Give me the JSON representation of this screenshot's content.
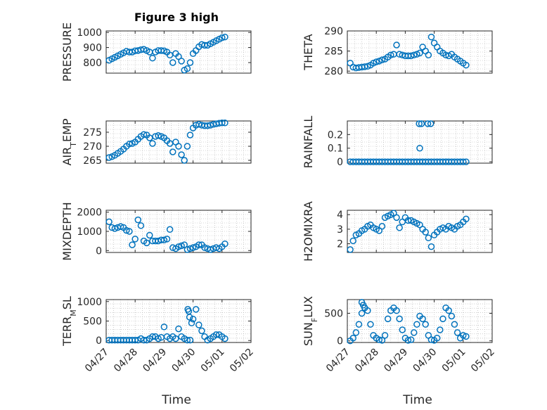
{
  "figure": {
    "title": "Figure 3 high"
  },
  "colors": {
    "marker": "#0072BD",
    "axis": "#262626"
  },
  "xaxis": {
    "label": "Time",
    "ticks": [
      "04/27",
      "04/28",
      "04/29",
      "04/30",
      "05/01",
      "05/02"
    ]
  },
  "chart_data": [
    {
      "type": "scatter",
      "ylabel": "PRESSURE",
      "yticks": [
        800,
        900,
        1000
      ],
      "ylim": [
        730,
        1010
      ],
      "grid": true,
      "x": [
        0.1,
        0.2,
        0.3,
        0.4,
        0.5,
        0.6,
        0.7,
        0.8,
        0.9,
        1.0,
        1.1,
        1.2,
        1.3,
        1.4,
        1.5,
        1.6,
        1.7,
        1.8,
        1.9,
        2.0,
        2.1,
        2.2,
        2.3,
        2.4,
        2.5,
        2.6,
        2.7,
        2.8,
        2.9,
        3.0,
        3.1,
        3.2,
        3.3,
        3.4,
        3.5,
        3.6,
        3.7,
        3.8,
        3.9,
        4.0,
        4.1
      ],
      "y": [
        815,
        825,
        835,
        845,
        855,
        865,
        875,
        870,
        870,
        878,
        880,
        885,
        888,
        880,
        870,
        830,
        870,
        880,
        880,
        878,
        870,
        850,
        800,
        860,
        840,
        810,
        750,
        760,
        800,
        860,
        880,
        905,
        920,
        915,
        915,
        925,
        935,
        945,
        955,
        965,
        970
      ]
    },
    {
      "type": "scatter",
      "ylabel": "THETA",
      "yticks": [
        280,
        285,
        290
      ],
      "ylim": [
        279.5,
        290
      ],
      "grid": true,
      "x": [
        0.1,
        0.2,
        0.3,
        0.4,
        0.5,
        0.6,
        0.7,
        0.8,
        0.9,
        1.0,
        1.1,
        1.2,
        1.3,
        1.4,
        1.5,
        1.6,
        1.7,
        1.8,
        1.9,
        2.0,
        2.1,
        2.2,
        2.3,
        2.4,
        2.5,
        2.6,
        2.7,
        2.8,
        2.9,
        3.0,
        3.1,
        3.2,
        3.3,
        3.4,
        3.5,
        3.6,
        3.7,
        3.8,
        3.9,
        4.0,
        4.1
      ],
      "y": [
        282.0,
        281.0,
        280.8,
        280.9,
        281.0,
        281.1,
        281.2,
        281.5,
        282.0,
        282.3,
        282.5,
        282.8,
        283.0,
        283.5,
        284.0,
        284.2,
        286.5,
        284.2,
        284.0,
        283.8,
        283.8,
        283.8,
        284.0,
        284.2,
        284.5,
        286.0,
        285.0,
        284.0,
        288.5,
        287.0,
        286.0,
        285.0,
        284.5,
        284.0,
        283.8,
        284.2,
        283.5,
        283.0,
        282.5,
        282.0,
        281.5
      ]
    },
    {
      "type": "scatter",
      "ylabel": "AIR_TEMP",
      "yticks": [
        265,
        270,
        275
      ],
      "ylim": [
        264,
        279
      ],
      "grid": true,
      "x": [
        0.1,
        0.2,
        0.3,
        0.4,
        0.5,
        0.6,
        0.7,
        0.8,
        0.9,
        1.0,
        1.1,
        1.2,
        1.3,
        1.4,
        1.5,
        1.6,
        1.7,
        1.8,
        1.9,
        2.0,
        2.1,
        2.2,
        2.3,
        2.4,
        2.5,
        2.6,
        2.7,
        2.8,
        2.9,
        3.0,
        3.1,
        3.2,
        3.3,
        3.4,
        3.5,
        3.6,
        3.7,
        3.8,
        3.9,
        4.0,
        4.1
      ],
      "y": [
        266.0,
        266.3,
        266.8,
        267.5,
        268.2,
        269.0,
        270.0,
        270.8,
        271.0,
        271.5,
        272.5,
        273.5,
        274.2,
        274.0,
        273.0,
        271.0,
        273.5,
        273.8,
        273.5,
        273.0,
        272.0,
        271.0,
        268.0,
        271.5,
        270.0,
        267.0,
        265.0,
        270.0,
        274.0,
        276.5,
        277.5,
        277.8,
        277.5,
        277.3,
        277.3,
        277.5,
        277.8,
        278.0,
        278.2,
        278.3,
        278.3
      ]
    },
    {
      "type": "scatter",
      "ylabel": "RAINFALL",
      "yticks": [
        0,
        0.1,
        0.2
      ],
      "ylim": [
        -0.01,
        0.3
      ],
      "grid": true,
      "x": [
        0.1,
        0.2,
        0.3,
        0.4,
        0.5,
        0.6,
        0.7,
        0.8,
        0.9,
        1.0,
        1.1,
        1.2,
        1.3,
        1.4,
        1.5,
        1.6,
        1.7,
        1.8,
        1.9,
        2.0,
        2.1,
        2.2,
        2.3,
        2.4,
        2.5,
        2.6,
        2.7,
        2.8,
        2.9,
        3.0,
        3.1,
        3.2,
        3.3,
        3.4,
        3.5,
        3.6,
        3.7,
        3.8,
        3.9,
        4.0,
        4.1,
        2.48,
        2.5,
        2.56,
        2.78,
        2.88
      ],
      "y": [
        0,
        0,
        0,
        0,
        0,
        0,
        0,
        0,
        0,
        0,
        0,
        0,
        0,
        0,
        0,
        0,
        0,
        0,
        0,
        0,
        0,
        0,
        0,
        0,
        0,
        0,
        0,
        0,
        0,
        0,
        0,
        0,
        0,
        0,
        0,
        0,
        0,
        0,
        0,
        0,
        0,
        0.28,
        0.1,
        0.28,
        0.28,
        0.28
      ]
    },
    {
      "type": "scatter",
      "ylabel": "MIXDEPTH",
      "yticks": [
        0,
        1000,
        2000
      ],
      "ylim": [
        -100,
        2100
      ],
      "grid": true,
      "x": [
        0.1,
        0.2,
        0.3,
        0.4,
        0.5,
        0.6,
        0.7,
        0.8,
        0.9,
        1.0,
        1.1,
        1.2,
        1.3,
        1.4,
        1.5,
        1.6,
        1.7,
        1.8,
        1.9,
        2.0,
        2.1,
        2.2,
        2.3,
        2.4,
        2.5,
        2.6,
        2.7,
        2.8,
        2.9,
        3.0,
        3.1,
        3.2,
        3.3,
        3.4,
        3.5,
        3.6,
        3.7,
        3.8,
        3.9,
        4.0,
        4.1
      ],
      "y": [
        1500,
        1200,
        1150,
        1200,
        1250,
        1200,
        1050,
        1000,
        300,
        600,
        1600,
        1300,
        500,
        400,
        800,
        500,
        500,
        500,
        550,
        550,
        600,
        1100,
        150,
        100,
        200,
        250,
        300,
        50,
        100,
        150,
        200,
        300,
        300,
        150,
        100,
        50,
        100,
        150,
        100,
        200,
        350
      ]
    },
    {
      "type": "scatter",
      "ylabel": "H2OMIXRA",
      "yticks": [
        2,
        3,
        4
      ],
      "ylim": [
        1.4,
        4.3
      ],
      "grid": true,
      "x": [
        0.1,
        0.2,
        0.3,
        0.4,
        0.5,
        0.6,
        0.7,
        0.8,
        0.9,
        1.0,
        1.1,
        1.2,
        1.3,
        1.4,
        1.5,
        1.6,
        1.7,
        1.8,
        1.9,
        2.0,
        2.1,
        2.2,
        2.3,
        2.4,
        2.5,
        2.6,
        2.7,
        2.8,
        2.9,
        3.0,
        3.1,
        3.2,
        3.3,
        3.4,
        3.5,
        3.6,
        3.7,
        3.8,
        3.9,
        4.0,
        4.1
      ],
      "y": [
        1.6,
        2.2,
        2.6,
        2.7,
        2.9,
        3.0,
        3.2,
        3.3,
        3.1,
        3.0,
        2.9,
        3.2,
        3.8,
        3.9,
        4.0,
        4.1,
        3.8,
        3.1,
        3.5,
        3.8,
        3.6,
        3.6,
        3.5,
        3.4,
        3.3,
        3.0,
        2.8,
        2.4,
        1.8,
        2.6,
        2.8,
        3.0,
        3.1,
        3.0,
        3.2,
        3.1,
        3.0,
        3.2,
        3.3,
        3.5,
        3.7
      ]
    },
    {
      "type": "scatter",
      "ylabel": "TERR_MSL",
      "yticks": [
        0,
        500,
        1000
      ],
      "ylim": [
        -50,
        1050
      ],
      "grid": true,
      "x": [
        0.1,
        0.2,
        0.3,
        0.4,
        0.5,
        0.6,
        0.7,
        0.8,
        0.9,
        1.0,
        1.1,
        1.2,
        1.3,
        1.4,
        1.5,
        1.6,
        1.7,
        1.8,
        1.9,
        2.0,
        2.1,
        2.2,
        2.3,
        2.4,
        2.5,
        2.6,
        2.7,
        2.8,
        2.9,
        3.0,
        3.1,
        3.2,
        3.3,
        3.4,
        3.5,
        3.6,
        3.7,
        3.8,
        3.9,
        4.0,
        4.1,
        2.82,
        2.85,
        2.88,
        2.95
      ],
      "y": [
        10,
        10,
        10,
        10,
        10,
        10,
        10,
        10,
        10,
        10,
        10,
        50,
        10,
        10,
        50,
        100,
        100,
        50,
        80,
        350,
        100,
        50,
        100,
        50,
        300,
        100,
        50,
        10,
        10,
        550,
        800,
        400,
        250,
        100,
        10,
        50,
        100,
        150,
        150,
        100,
        50,
        800,
        750,
        600,
        450
      ]
    },
    {
      "type": "scatter",
      "ylabel": "SUN_FLUX",
      "yticks": [
        0,
        500
      ],
      "ylim": [
        -30,
        750
      ],
      "grid": true,
      "x": [
        0.1,
        0.2,
        0.3,
        0.4,
        0.5,
        0.6,
        0.7,
        0.8,
        0.9,
        1.0,
        1.1,
        1.2,
        1.3,
        1.4,
        1.5,
        1.6,
        1.7,
        1.8,
        1.9,
        2.0,
        2.1,
        2.2,
        2.3,
        2.4,
        2.5,
        2.6,
        2.7,
        2.8,
        2.9,
        3.0,
        3.1,
        3.2,
        3.3,
        3.4,
        3.5,
        3.6,
        3.7,
        3.8,
        3.9,
        4.0,
        4.1,
        0.5,
        0.55,
        0.6
      ],
      "y": [
        0,
        50,
        150,
        300,
        500,
        600,
        550,
        300,
        100,
        50,
        20,
        10,
        100,
        400,
        550,
        600,
        550,
        400,
        200,
        50,
        10,
        20,
        150,
        300,
        450,
        400,
        300,
        100,
        20,
        10,
        50,
        200,
        400,
        600,
        550,
        450,
        300,
        150,
        50,
        100,
        80,
        700,
        650,
        600
      ]
    }
  ]
}
